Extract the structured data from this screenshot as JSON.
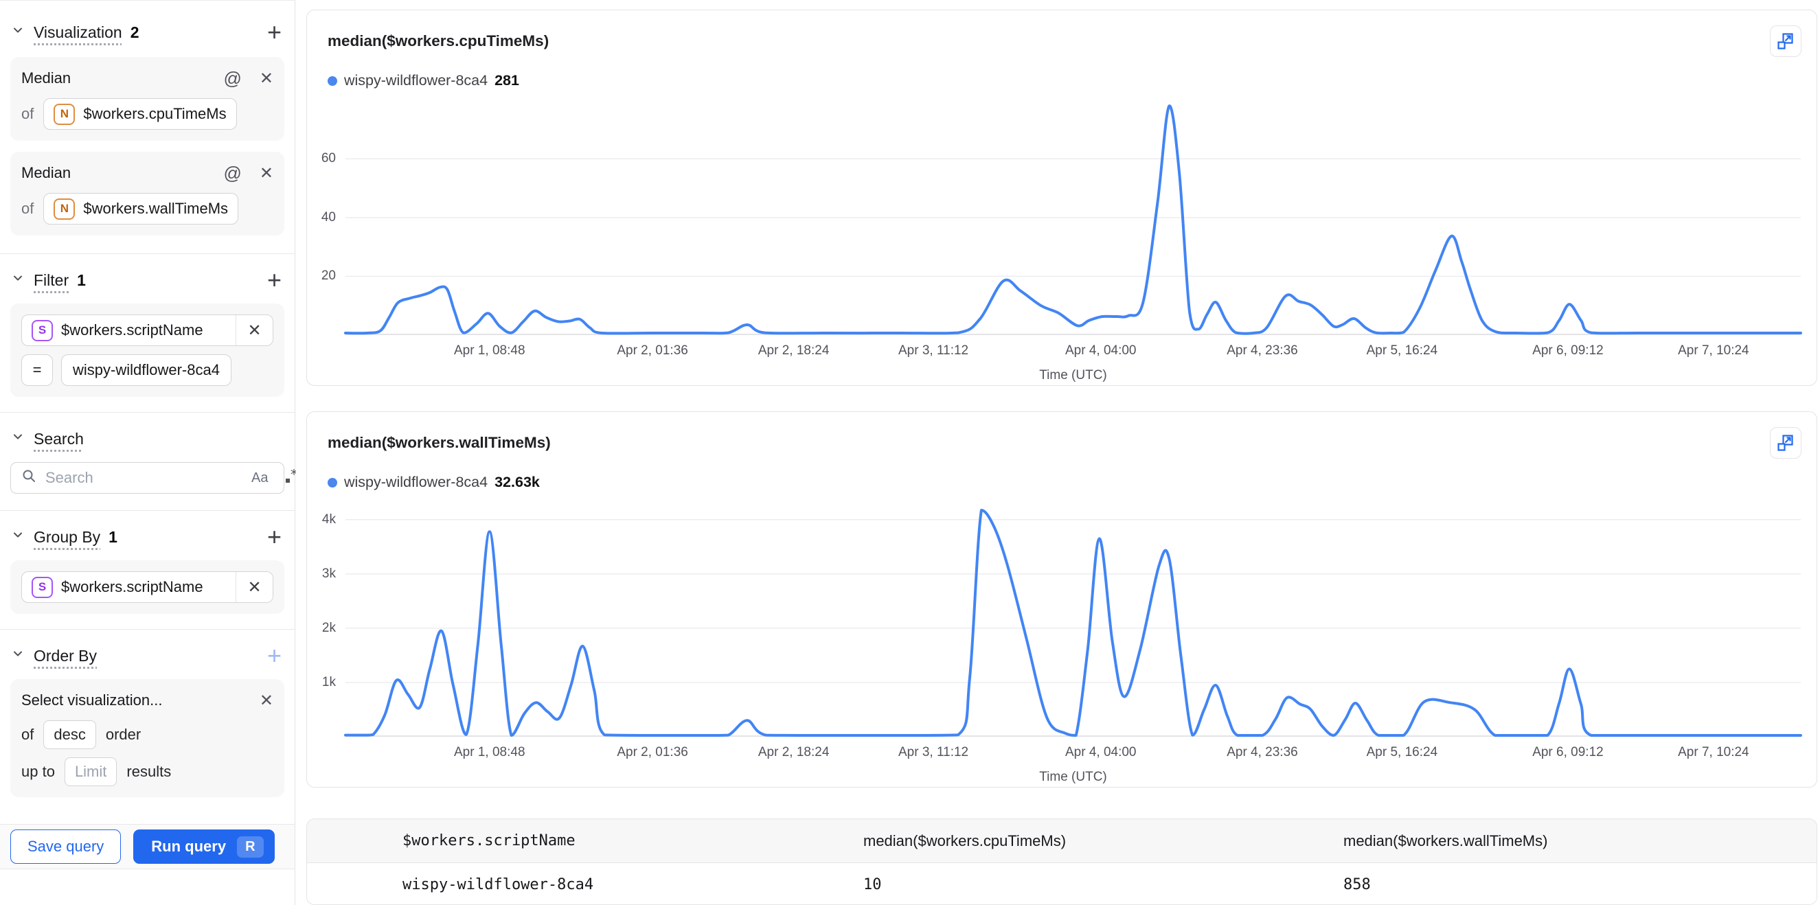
{
  "sidebar": {
    "visualization": {
      "title": "Visualization",
      "count": "2",
      "add": "+",
      "cards": [
        {
          "aggregation": "Median",
          "of_label": "of",
          "type_badge": "N",
          "field": "$workers.cpuTimeMs"
        },
        {
          "aggregation": "Median",
          "of_label": "of",
          "type_badge": "N",
          "field": "$workers.wallTimeMs"
        }
      ]
    },
    "filter": {
      "title": "Filter",
      "count": "1",
      "add": "+",
      "type_badge": "S",
      "field": "$workers.scriptName",
      "operator": "=",
      "value": "wispy-wildflower-8ca4"
    },
    "search": {
      "title": "Search",
      "placeholder": "Search",
      "match_case": "Aa"
    },
    "group_by": {
      "title": "Group By",
      "count": "1",
      "add": "+",
      "type_badge": "S",
      "field": "$workers.scriptName"
    },
    "order_by": {
      "title": "Order By",
      "add": "+",
      "placeholder": "Select visualization...",
      "of_label": "of",
      "direction": "desc",
      "order_label": "order",
      "up_to_label": "up to",
      "limit_placeholder": "Limit",
      "results_label": "results"
    },
    "footer": {
      "save_label": "Save query",
      "run_label": "Run query",
      "run_shortcut": "R"
    }
  },
  "chart_data": [
    {
      "type": "line",
      "title": "median($workers.cpuTimeMs)",
      "xlabel": "Time (UTC)",
      "line_color": "#4285f4",
      "ylim": [
        0,
        79
      ],
      "yticks": [
        {
          "label": "20",
          "value": 20
        },
        {
          "label": "40",
          "value": 40
        },
        {
          "label": "60",
          "value": 60
        }
      ],
      "xticks": [
        {
          "label": "Apr 1, 08:48",
          "f": 0.099
        },
        {
          "label": "Apr 2, 01:36",
          "f": 0.211
        },
        {
          "label": "Apr 2, 18:24",
          "f": 0.308
        },
        {
          "label": "Apr 3, 11:12",
          "f": 0.404
        },
        {
          "label": "Apr 4, 04:00",
          "f": 0.519
        },
        {
          "label": "Apr 4, 23:36",
          "f": 0.63
        },
        {
          "label": "Apr 5, 16:24",
          "f": 0.726
        },
        {
          "label": "Apr 6, 09:12",
          "f": 0.84
        },
        {
          "label": "Apr 7, 10:24",
          "f": 0.94
        }
      ],
      "legend": [
        {
          "name": "wispy-wildflower-8ca4",
          "value": "281",
          "color": "#4a87ee"
        }
      ],
      "series": [
        {
          "name": "wispy-wildflower-8ca4",
          "points": [
            [
              0,
              0.7
            ],
            [
              0.015,
              0.7
            ],
            [
              0.024,
              1.5
            ],
            [
              0.03,
              6
            ],
            [
              0.036,
              11
            ],
            [
              0.044,
              12.5
            ],
            [
              0.052,
              13.5
            ],
            [
              0.058,
              14.5
            ],
            [
              0.065,
              16.3
            ],
            [
              0.07,
              15.5
            ],
            [
              0.075,
              8
            ],
            [
              0.081,
              0.8
            ],
            [
              0.09,
              3.8
            ],
            [
              0.098,
              7.4
            ],
            [
              0.106,
              3
            ],
            [
              0.114,
              0.8
            ],
            [
              0.122,
              4.5
            ],
            [
              0.13,
              8.2
            ],
            [
              0.138,
              6
            ],
            [
              0.146,
              4.6
            ],
            [
              0.154,
              4.8
            ],
            [
              0.161,
              5.4
            ],
            [
              0.168,
              2.5
            ],
            [
              0.176,
              0.7
            ],
            [
              0.21,
              0.7
            ],
            [
              0.245,
              0.7
            ],
            [
              0.263,
              0.8
            ],
            [
              0.276,
              3.5
            ],
            [
              0.288,
              0.8
            ],
            [
              0.33,
              0.7
            ],
            [
              0.38,
              0.7
            ],
            [
              0.421,
              0.8
            ],
            [
              0.436,
              5.5
            ],
            [
              0.452,
              18.4
            ],
            [
              0.464,
              15
            ],
            [
              0.478,
              10
            ],
            [
              0.49,
              7.5
            ],
            [
              0.503,
              3.2
            ],
            [
              0.511,
              5
            ],
            [
              0.52,
              6.3
            ],
            [
              0.53,
              6.3
            ],
            [
              0.538,
              6.6
            ],
            [
              0.548,
              11
            ],
            [
              0.558,
              45
            ],
            [
              0.566,
              78
            ],
            [
              0.573,
              55
            ],
            [
              0.58,
              8
            ],
            [
              0.586,
              2
            ],
            [
              0.592,
              7
            ],
            [
              0.598,
              11.2
            ],
            [
              0.605,
              5
            ],
            [
              0.612,
              0.8
            ],
            [
              0.624,
              0.7
            ],
            [
              0.633,
              2.5
            ],
            [
              0.646,
              13.3
            ],
            [
              0.655,
              11.5
            ],
            [
              0.663,
              10.3
            ],
            [
              0.671,
              7
            ],
            [
              0.679,
              3
            ],
            [
              0.685,
              3.5
            ],
            [
              0.693,
              5.6
            ],
            [
              0.701,
              2.5
            ],
            [
              0.708,
              0.8
            ],
            [
              0.718,
              0.7
            ],
            [
              0.727,
              0.9
            ],
            [
              0.738,
              9
            ],
            [
              0.749,
              22
            ],
            [
              0.76,
              33.7
            ],
            [
              0.767,
              25
            ],
            [
              0.773,
              15.5
            ],
            [
              0.781,
              5
            ],
            [
              0.79,
              1.2
            ],
            [
              0.803,
              0.7
            ],
            [
              0.826,
              0.8
            ],
            [
              0.834,
              5
            ],
            [
              0.841,
              10.5
            ],
            [
              0.849,
              5
            ],
            [
              0.856,
              0.8
            ],
            [
              0.89,
              0.7
            ],
            [
              0.94,
              0.7
            ],
            [
              1,
              0.7
            ]
          ]
        }
      ]
    },
    {
      "type": "line",
      "title": "median($workers.wallTimeMs)",
      "xlabel": "Time (UTC)",
      "line_color": "#4285f4",
      "ylim": [
        0,
        4200
      ],
      "yticks": [
        {
          "label": "1k",
          "value": 1000
        },
        {
          "label": "2k",
          "value": 2000
        },
        {
          "label": "3k",
          "value": 3000
        },
        {
          "label": "4k",
          "value": 4000
        }
      ],
      "xticks": [
        {
          "label": "Apr 1, 08:48",
          "f": 0.099
        },
        {
          "label": "Apr 2, 01:36",
          "f": 0.211
        },
        {
          "label": "Apr 2, 18:24",
          "f": 0.308
        },
        {
          "label": "Apr 3, 11:12",
          "f": 0.404
        },
        {
          "label": "Apr 4, 04:00",
          "f": 0.519
        },
        {
          "label": "Apr 4, 23:36",
          "f": 0.63
        },
        {
          "label": "Apr 5, 16:24",
          "f": 0.726
        },
        {
          "label": "Apr 6, 09:12",
          "f": 0.84
        },
        {
          "label": "Apr 7, 10:24",
          "f": 0.94
        }
      ],
      "legend": [
        {
          "name": "wispy-wildflower-8ca4",
          "value": "32.63k",
          "color": "#4a87ee"
        }
      ],
      "series": [
        {
          "name": "wispy-wildflower-8ca4",
          "points": [
            [
              0,
              30
            ],
            [
              0.013,
              30
            ],
            [
              0.019,
              40
            ],
            [
              0.027,
              400
            ],
            [
              0.035,
              1040
            ],
            [
              0.043,
              780
            ],
            [
              0.051,
              540
            ],
            [
              0.058,
              1250
            ],
            [
              0.066,
              1950
            ],
            [
              0.074,
              950
            ],
            [
              0.083,
              40
            ],
            [
              0.091,
              1700
            ],
            [
              0.099,
              3780
            ],
            [
              0.107,
              1700
            ],
            [
              0.114,
              25
            ],
            [
              0.123,
              430
            ],
            [
              0.131,
              630
            ],
            [
              0.139,
              460
            ],
            [
              0.147,
              345
            ],
            [
              0.155,
              950
            ],
            [
              0.163,
              1670
            ],
            [
              0.171,
              850
            ],
            [
              0.178,
              35
            ],
            [
              0.21,
              25
            ],
            [
              0.25,
              25
            ],
            [
              0.263,
              30
            ],
            [
              0.276,
              300
            ],
            [
              0.289,
              30
            ],
            [
              0.33,
              25
            ],
            [
              0.38,
              25
            ],
            [
              0.421,
              35
            ],
            [
              0.429,
              1100
            ],
            [
              0.437,
              4200
            ],
            [
              0.446,
              3850
            ],
            [
              0.455,
              3150
            ],
            [
              0.468,
              1800
            ],
            [
              0.482,
              350
            ],
            [
              0.495,
              60
            ],
            [
              0.502,
              25
            ],
            [
              0.51,
              1600
            ],
            [
              0.518,
              3650
            ],
            [
              0.527,
              1750
            ],
            [
              0.535,
              740
            ],
            [
              0.546,
              1600
            ],
            [
              0.559,
              3150
            ],
            [
              0.566,
              3280
            ],
            [
              0.574,
              1500
            ],
            [
              0.582,
              30
            ],
            [
              0.59,
              500
            ],
            [
              0.598,
              950
            ],
            [
              0.606,
              380
            ],
            [
              0.613,
              20
            ],
            [
              0.63,
              20
            ],
            [
              0.639,
              320
            ],
            [
              0.647,
              720
            ],
            [
              0.656,
              600
            ],
            [
              0.663,
              510
            ],
            [
              0.671,
              200
            ],
            [
              0.679,
              20
            ],
            [
              0.687,
              320
            ],
            [
              0.694,
              620
            ],
            [
              0.702,
              300
            ],
            [
              0.71,
              20
            ],
            [
              0.727,
              20
            ],
            [
              0.741,
              640
            ],
            [
              0.759,
              630
            ],
            [
              0.776,
              500
            ],
            [
              0.79,
              20
            ],
            [
              0.81,
              15
            ],
            [
              0.826,
              20
            ],
            [
              0.834,
              620
            ],
            [
              0.841,
              1250
            ],
            [
              0.849,
              600
            ],
            [
              0.856,
              20
            ],
            [
              0.9,
              15
            ],
            [
              0.95,
              15
            ],
            [
              1,
              15
            ]
          ]
        }
      ]
    }
  ],
  "table": {
    "columns": [
      "$workers.scriptName",
      "median($workers.cpuTimeMs)",
      "median($workers.wallTimeMs)"
    ],
    "rows": [
      {
        "dot_color": "#4a87ee",
        "scriptName": "wispy-wildflower-8ca4",
        "cpu": "10",
        "wall": "858"
      }
    ]
  }
}
